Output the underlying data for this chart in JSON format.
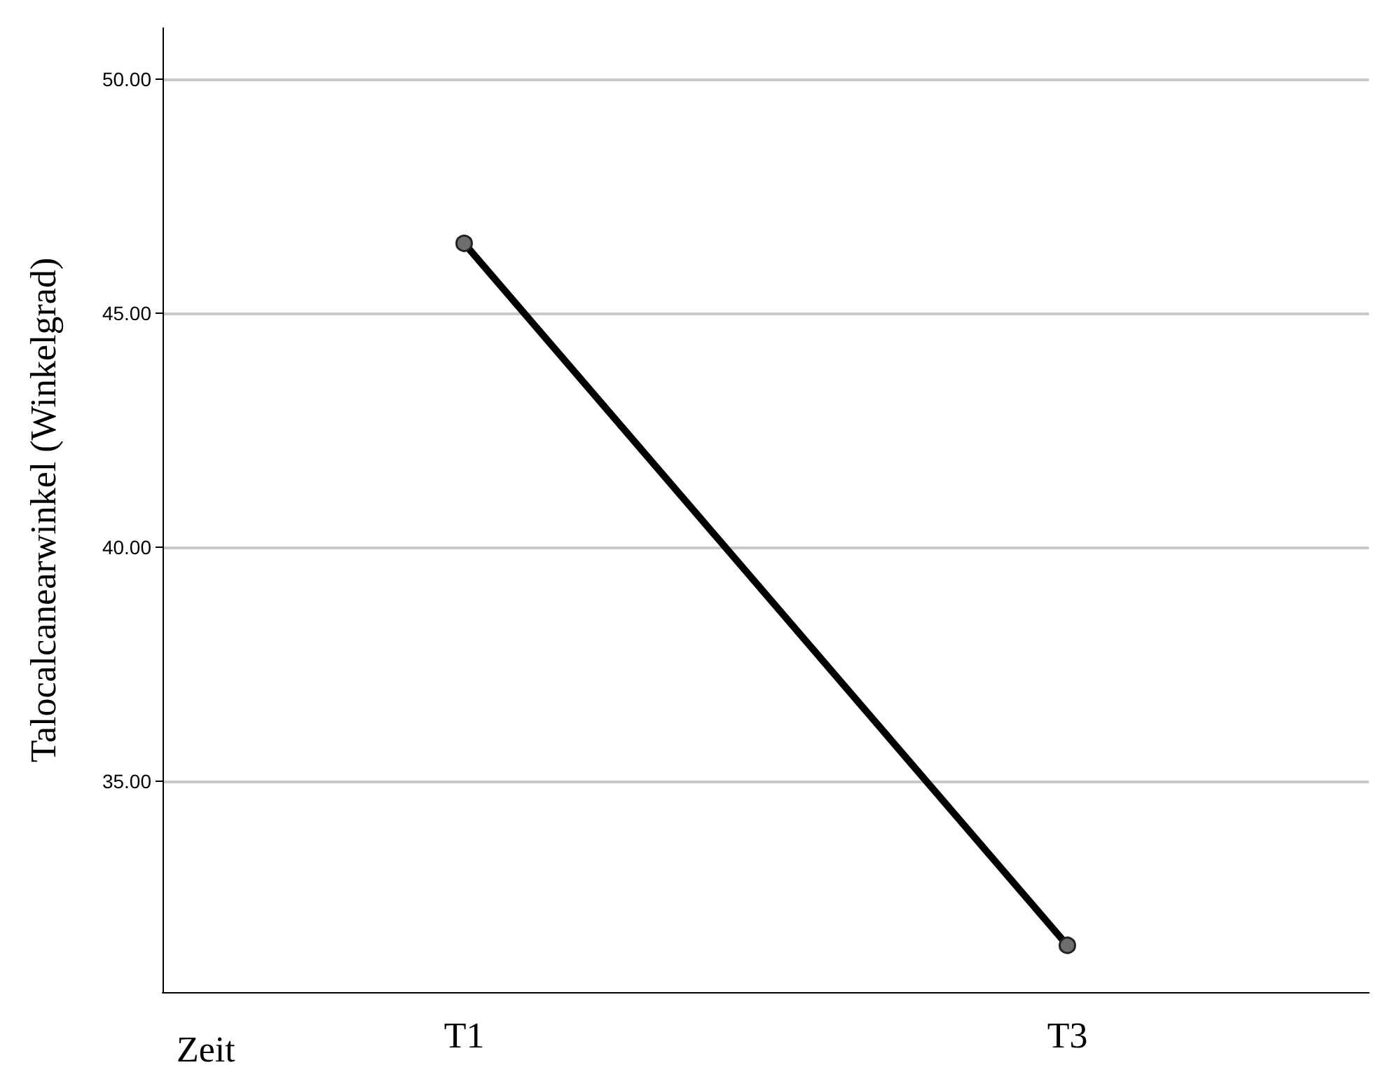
{
  "chart_data": {
    "type": "line",
    "xlabel": "Zeit",
    "ylabel": "Talocalcanearwinkel (Winkelgrad)",
    "categories": [
      "T1",
      "T3"
    ],
    "series": [
      {
        "color": "#000000",
        "values": [
          46.5,
          31.5
        ]
      }
    ],
    "ylim": [
      30.5,
      51.1
    ],
    "yticks": [
      {
        "value": 35,
        "label": "35.00"
      },
      {
        "value": 40,
        "label": "40.00"
      },
      {
        "value": 45,
        "label": "45.00"
      },
      {
        "value": 50,
        "label": "50.00"
      }
    ],
    "grid": "y",
    "marker": "circle",
    "line_style": "solid"
  }
}
